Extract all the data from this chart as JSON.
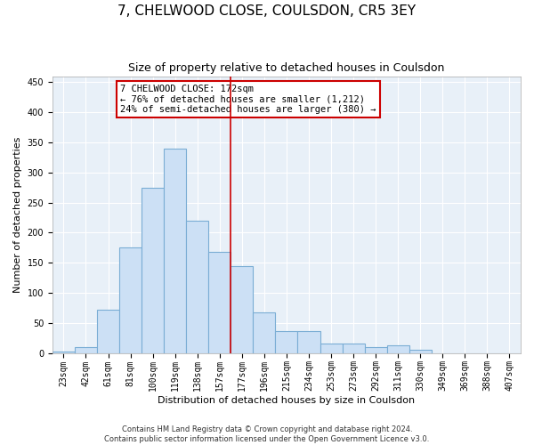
{
  "title": "7, CHELWOOD CLOSE, COULSDON, CR5 3EY",
  "subtitle": "Size of property relative to detached houses in Coulsdon",
  "xlabel": "Distribution of detached houses by size in Coulsdon",
  "ylabel": "Number of detached properties",
  "footer_line1": "Contains HM Land Registry data © Crown copyright and database right 2024.",
  "footer_line2": "Contains public sector information licensed under the Open Government Licence v3.0.",
  "bar_labels": [
    "23sqm",
    "42sqm",
    "61sqm",
    "81sqm",
    "100sqm",
    "119sqm",
    "138sqm",
    "157sqm",
    "177sqm",
    "196sqm",
    "215sqm",
    "234sqm",
    "253sqm",
    "273sqm",
    "292sqm",
    "311sqm",
    "330sqm",
    "349sqm",
    "369sqm",
    "388sqm",
    "407sqm"
  ],
  "bar_values": [
    2,
    10,
    72,
    175,
    275,
    340,
    220,
    168,
    145,
    68,
    37,
    37,
    15,
    16,
    10,
    12,
    5,
    0,
    0,
    0,
    0
  ],
  "bar_color": "#cce0f5",
  "bar_edge_color": "#7aadd4",
  "vline_x_index": 7.5,
  "annotation_text_line1": "7 CHELWOOD CLOSE: 172sqm",
  "annotation_text_line2": "← 76% of detached houses are smaller (1,212)",
  "annotation_text_line3": "24% of semi-detached houses are larger (380) →",
  "vline_color": "#cc0000",
  "annotation_border_color": "#cc0000",
  "ylim": [
    0,
    460
  ],
  "yticks": [
    0,
    50,
    100,
    150,
    200,
    250,
    300,
    350,
    400,
    450
  ],
  "background_color": "#e8f0f8",
  "grid_color": "#ffffff",
  "title_fontsize": 11,
  "subtitle_fontsize": 9,
  "axis_label_fontsize": 8,
  "tick_fontsize": 7,
  "annotation_fontsize": 7.5,
  "footer_fontsize": 6
}
